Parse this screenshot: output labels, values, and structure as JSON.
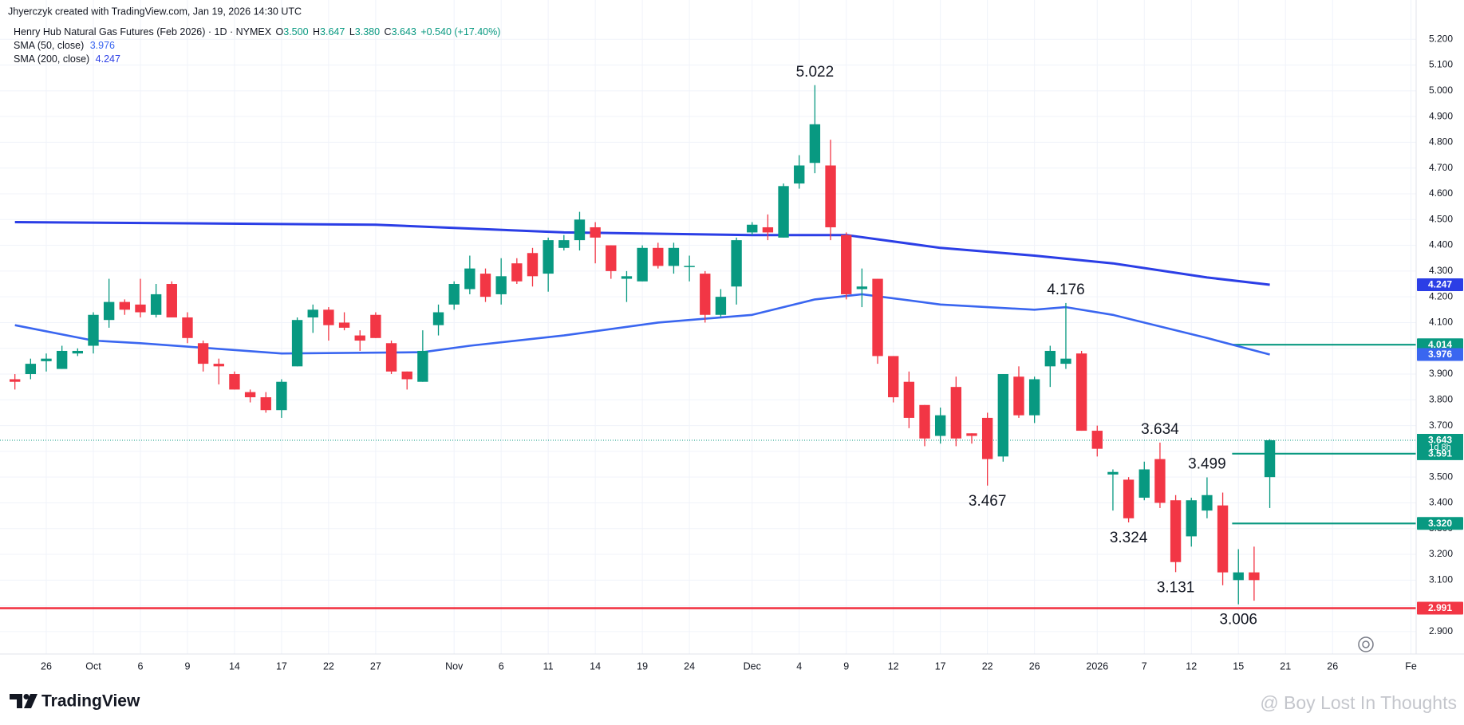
{
  "header": {
    "credit": "Jhyerczyk created with TradingView.com, Jan 19, 2026 14:30 UTC",
    "symbol": "Henry Hub Natural Gas Futures (Feb 2026) · 1D · NYMEX",
    "ohlc": [
      {
        "key": "O",
        "value": "3.500"
      },
      {
        "key": "H",
        "value": "3.647"
      },
      {
        "key": "L",
        "value": "3.380"
      },
      {
        "key": "C",
        "value": "3.643"
      }
    ],
    "change": "+0.540 (+17.40%)"
  },
  "chart_data": {
    "type": "candlestick",
    "up_color": "#089981",
    "down_color": "#f23645",
    "grid": true,
    "candles": {
      "open": [
        3.88,
        3.9,
        3.95,
        3.92,
        3.98,
        4.01,
        4.11,
        4.18,
        4.17,
        4.13,
        4.25,
        4.12,
        4.02,
        3.94,
        3.9,
        3.83,
        3.81,
        3.76,
        3.93,
        4.12,
        4.15,
        4.1,
        4.05,
        4.13,
        4.02,
        3.91,
        3.87,
        4.09,
        4.17,
        4.23,
        4.29,
        4.21,
        4.33,
        4.37,
        4.29,
        4.39,
        4.42,
        4.47,
        4.4,
        4.27,
        4.26,
        4.39,
        4.32,
        4.32,
        4.29,
        4.13,
        4.24,
        4.45,
        4.47,
        4.43,
        4.64,
        4.72,
        4.71,
        4.44,
        4.23,
        4.27,
        3.97,
        3.87,
        3.78,
        3.66,
        3.85,
        3.67,
        3.73,
        3.58,
        3.89,
        3.74,
        3.93,
        3.94,
        3.98,
        3.68,
        3.51,
        3.49,
        3.42,
        3.57,
        3.41,
        3.27,
        3.37,
        3.39,
        3.1,
        3.13,
        3.5
      ],
      "high": [
        3.9,
        3.96,
        3.98,
        4.01,
        4.0,
        4.14,
        4.27,
        4.19,
        4.27,
        4.25,
        4.26,
        4.14,
        4.03,
        3.96,
        3.91,
        3.84,
        3.83,
        3.88,
        4.12,
        4.17,
        4.16,
        4.14,
        4.07,
        4.14,
        4.03,
        3.91,
        4.07,
        4.17,
        4.26,
        4.36,
        4.31,
        4.35,
        4.35,
        4.39,
        4.43,
        4.44,
        4.53,
        4.49,
        4.4,
        4.3,
        4.4,
        4.41,
        4.41,
        4.36,
        4.3,
        4.23,
        4.43,
        4.49,
        4.52,
        4.64,
        4.75,
        5.022,
        4.81,
        4.45,
        4.31,
        4.27,
        3.97,
        3.91,
        3.78,
        3.77,
        3.89,
        3.67,
        3.75,
        3.9,
        3.93,
        3.89,
        4.01,
        4.176,
        3.99,
        3.7,
        3.53,
        3.5,
        3.56,
        3.634,
        3.43,
        3.42,
        3.499,
        3.44,
        3.22,
        3.23,
        3.647
      ],
      "low": [
        3.84,
        3.88,
        3.91,
        3.92,
        3.97,
        3.98,
        4.08,
        4.13,
        4.12,
        4.12,
        4.12,
        4.02,
        3.91,
        3.86,
        3.84,
        3.79,
        3.75,
        3.73,
        3.93,
        4.06,
        4.03,
        4.07,
        3.99,
        4.04,
        3.9,
        3.84,
        3.87,
        4.05,
        4.15,
        4.21,
        4.18,
        4.17,
        4.25,
        4.24,
        4.22,
        4.38,
        4.38,
        4.33,
        4.27,
        4.18,
        4.26,
        4.31,
        4.29,
        4.26,
        4.1,
        4.12,
        4.17,
        4.44,
        4.42,
        4.43,
        4.62,
        4.68,
        4.42,
        4.19,
        4.16,
        3.94,
        3.79,
        3.69,
        3.62,
        3.63,
        3.62,
        3.63,
        3.467,
        3.56,
        3.73,
        3.71,
        3.85,
        3.92,
        3.68,
        3.58,
        3.37,
        3.324,
        3.41,
        3.38,
        3.131,
        3.23,
        3.34,
        3.08,
        3.006,
        3.02,
        3.38
      ],
      "close": [
        3.87,
        3.94,
        3.96,
        3.99,
        3.99,
        4.13,
        4.18,
        4.15,
        4.14,
        4.21,
        4.12,
        4.04,
        3.94,
        3.93,
        3.84,
        3.81,
        3.76,
        3.87,
        4.11,
        4.15,
        4.09,
        4.08,
        4.03,
        4.04,
        3.91,
        3.88,
        3.99,
        4.14,
        4.25,
        4.31,
        4.2,
        4.28,
        4.26,
        4.28,
        4.42,
        4.42,
        4.5,
        4.43,
        4.3,
        4.28,
        4.39,
        4.32,
        4.39,
        4.32,
        4.13,
        4.2,
        4.42,
        4.48,
        4.45,
        4.63,
        4.71,
        4.87,
        4.47,
        4.21,
        4.24,
        3.97,
        3.81,
        3.73,
        3.65,
        3.74,
        3.65,
        3.66,
        3.57,
        3.9,
        3.74,
        3.88,
        3.99,
        3.96,
        3.68,
        3.61,
        3.52,
        3.34,
        3.53,
        3.4,
        3.17,
        3.41,
        3.43,
        3.13,
        3.13,
        3.1,
        3.643
      ]
    },
    "series": [
      {
        "name": "SMA (50, close)",
        "last": 3.976,
        "color": "#3a66f0",
        "x": [
          0,
          5,
          8,
          17,
          26,
          29,
          35,
          41,
          47,
          51,
          54,
          59,
          65,
          67,
          70,
          74,
          76,
          80
        ],
        "values": [
          4.09,
          4.03,
          4.02,
          3.98,
          3.985,
          4.01,
          4.05,
          4.1,
          4.13,
          4.19,
          4.21,
          4.17,
          4.15,
          4.16,
          4.13,
          4.07,
          4.04,
          3.976
        ]
      },
      {
        "name": "SMA (200, close)",
        "last": 4.247,
        "color": "#2b3ee6",
        "x": [
          0,
          23,
          35,
          47,
          53,
          59,
          65,
          70,
          76,
          80
        ],
        "values": [
          4.49,
          4.48,
          4.45,
          4.44,
          4.44,
          4.39,
          4.36,
          4.33,
          4.275,
          4.247
        ]
      }
    ],
    "xlim": [
      -0.95,
      89.33
    ],
    "ylim": [
      2.813,
      5.334
    ],
    "xticks": [
      {
        "value": 2,
        "label": "26"
      },
      {
        "value": 5,
        "label": "Oct"
      },
      {
        "value": 8,
        "label": "6"
      },
      {
        "value": 11,
        "label": "9"
      },
      {
        "value": 14,
        "label": "14"
      },
      {
        "value": 17,
        "label": "17"
      },
      {
        "value": 20,
        "label": "22"
      },
      {
        "value": 23,
        "label": "27"
      },
      {
        "value": 28,
        "label": "Nov"
      },
      {
        "value": 31,
        "label": "6"
      },
      {
        "value": 34,
        "label": "11"
      },
      {
        "value": 37,
        "label": "14"
      },
      {
        "value": 40,
        "label": "19"
      },
      {
        "value": 43,
        "label": "24"
      },
      {
        "value": 47,
        "label": "Dec"
      },
      {
        "value": 50,
        "label": "4"
      },
      {
        "value": 53,
        "label": "9"
      },
      {
        "value": 56,
        "label": "12"
      },
      {
        "value": 59,
        "label": "17"
      },
      {
        "value": 62,
        "label": "22"
      },
      {
        "value": 65,
        "label": "26"
      },
      {
        "value": 69,
        "label": "2026"
      },
      {
        "value": 72,
        "label": "7"
      },
      {
        "value": 75,
        "label": "12"
      },
      {
        "value": 78,
        "label": "15"
      },
      {
        "value": 81,
        "label": "21"
      },
      {
        "value": 84,
        "label": "26"
      },
      {
        "value": 89,
        "label": "Fe"
      }
    ],
    "yticks": [
      {
        "value": 5.2,
        "label": "5.200"
      },
      {
        "value": 5.1,
        "label": "5.100"
      },
      {
        "value": 5.0,
        "label": "5.000"
      },
      {
        "value": 4.9,
        "label": "4.900"
      },
      {
        "value": 4.8,
        "label": "4.800"
      },
      {
        "value": 4.7,
        "label": "4.700"
      },
      {
        "value": 4.6,
        "label": "4.600"
      },
      {
        "value": 4.5,
        "label": "4.500"
      },
      {
        "value": 4.4,
        "label": "4.400"
      },
      {
        "value": 4.3,
        "label": "4.300"
      },
      {
        "value": 4.2,
        "label": "4.200"
      },
      {
        "value": 4.1,
        "label": "4.100"
      },
      {
        "value": 4.0,
        "label": "4.000"
      },
      {
        "value": 3.9,
        "label": "3.900"
      },
      {
        "value": 3.8,
        "label": "3.800"
      },
      {
        "value": 3.7,
        "label": "3.700"
      },
      {
        "value": 3.6,
        "label": "3.600"
      },
      {
        "value": 3.5,
        "label": "3.500"
      },
      {
        "value": 3.4,
        "label": "3.400"
      },
      {
        "value": 3.3,
        "label": "3.300"
      },
      {
        "value": 3.2,
        "label": "3.200"
      },
      {
        "value": 3.1,
        "label": "3.100"
      },
      {
        "value": 3.0,
        "label": "3.000"
      },
      {
        "value": 2.9,
        "label": "2.900"
      }
    ],
    "levels": [
      {
        "value": 2.991,
        "color": "#f23645"
      },
      {
        "value": 4.014,
        "color": "#089981"
      },
      {
        "value": 3.591,
        "color": "#089981"
      },
      {
        "value": 3.32,
        "color": "#089981"
      }
    ],
    "price_tags": [
      {
        "value": 4.247,
        "label": "4.247",
        "color": "#2b3ee6"
      },
      {
        "value": 4.014,
        "label": "4.014",
        "color": "#089981"
      },
      {
        "value": 3.976,
        "label": "3.976",
        "color": "#3a66f0"
      },
      {
        "value": 3.643,
        "label": "3.643",
        "color": "#089981"
      },
      {
        "value": 3.591,
        "label": "3.591",
        "color": "#089981"
      },
      {
        "value": 3.32,
        "label": "3.320",
        "color": "#089981"
      },
      {
        "value": 2.991,
        "label": "2.991",
        "color": "#f23645"
      }
    ],
    "countdown": "1d 8h",
    "price_labels": [
      5.022,
      4.176,
      3.634,
      3.499,
      3.467,
      3.324,
      3.131,
      3.006
    ]
  },
  "footer": {
    "brand": "TradingView",
    "watermark": "@ Boy Lost In Thoughts"
  }
}
